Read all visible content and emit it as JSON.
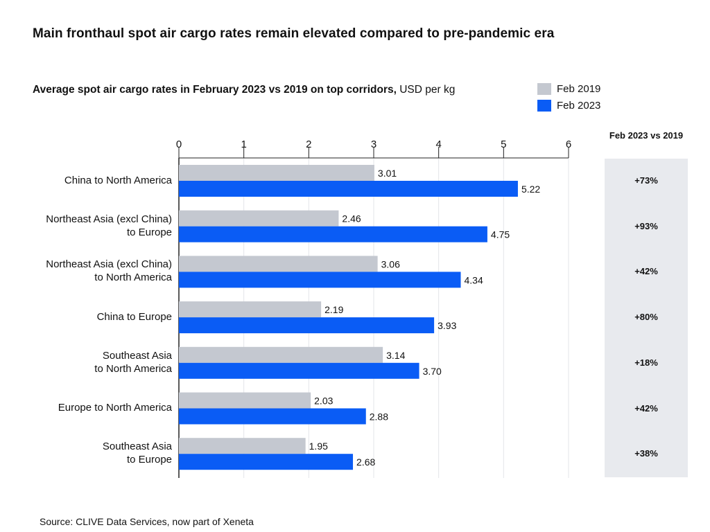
{
  "title": "Main fronthaul spot air cargo rates remain elevated compared to pre-pandemic era",
  "subtitle_bold": "Average spot air cargo rates in February 2023 vs 2019 on top corridors,",
  "subtitle_unit": " USD per kg",
  "change_header": "Feb 2023 vs 2019",
  "source": "Source: CLIVE Data Services, now part of Xeneta",
  "colors": {
    "feb2019": "#c4c8d0",
    "feb2023": "#0a5cf5",
    "panel": "#e8eaee"
  },
  "chart_data": {
    "type": "bar",
    "orientation": "horizontal",
    "title": "Average spot air cargo rates in February 2023 vs 2019 on top corridors, USD per kg",
    "xlabel": "USD per kg",
    "xlim": [
      0,
      6
    ],
    "xticks": [
      "0",
      "1",
      "2",
      "3",
      "4",
      "5",
      "6"
    ],
    "legend_position": "top-right",
    "categories": [
      "China to North America",
      "Northeast Asia (excl China)\nto Europe",
      "Northeast Asia (excl China)\nto North America",
      "China to Europe",
      "Southeast Asia\nto North America",
      "Europe to North America",
      "Southeast Asia\nto Europe"
    ],
    "series": [
      {
        "name": "Feb 2019",
        "values": [
          3.01,
          2.46,
          3.06,
          2.19,
          3.14,
          2.03,
          1.95
        ],
        "labels": [
          "3.01",
          "2.46",
          "3.06",
          "2.19",
          "3.14",
          "2.03",
          "1.95"
        ]
      },
      {
        "name": "Feb 2023",
        "values": [
          5.22,
          4.75,
          4.34,
          3.93,
          3.7,
          2.88,
          2.68
        ],
        "labels": [
          "5.22",
          "4.75",
          "4.34",
          "3.93",
          "3.70",
          "2.88",
          "2.68"
        ]
      }
    ],
    "change": [
      "+73%",
      "+93%",
      "+42%",
      "+80%",
      "+18%",
      "+42%",
      "+38%"
    ]
  }
}
